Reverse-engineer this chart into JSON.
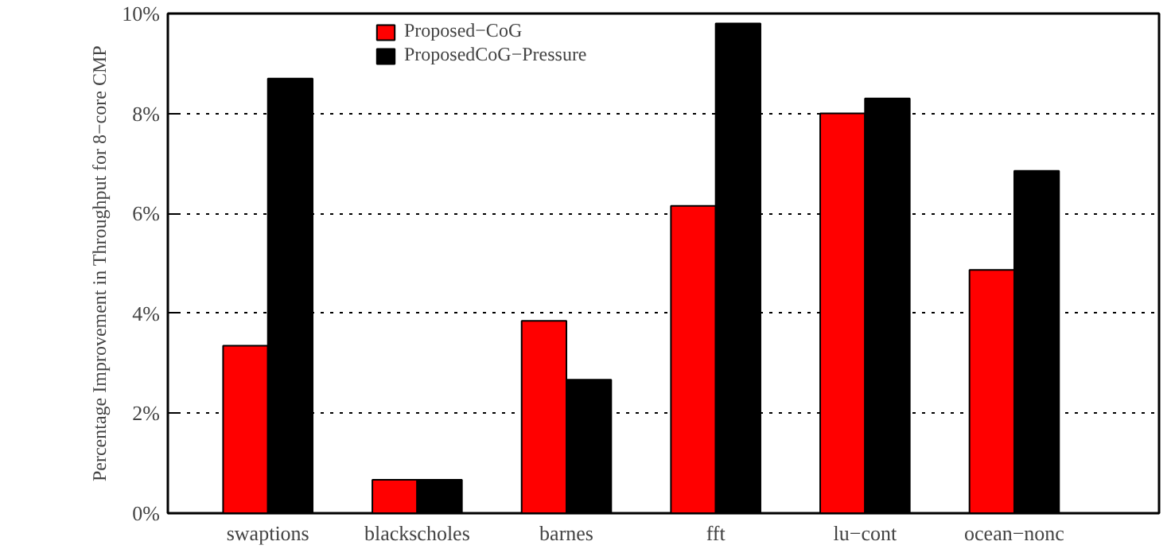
{
  "chart_data": {
    "type": "bar",
    "ylabel": "Percentage Improvement in Throughput for 8−core CMP",
    "categories": [
      "swaptions",
      "blackscholes",
      "barnes",
      "fft",
      "lu−cont",
      "ocean−nonc"
    ],
    "series": [
      {
        "name": "Proposed−CoG",
        "color": "#ff0000",
        "values": [
          3.35,
          0.67,
          3.85,
          6.15,
          8.0,
          4.87
        ]
      },
      {
        "name": "ProposedCoG−Pressure",
        "color": "#000000",
        "values": [
          8.7,
          0.67,
          2.67,
          9.8,
          8.3,
          6.85
        ]
      }
    ],
    "ylim": [
      0,
      10
    ],
    "yticks": [
      {
        "value": 0,
        "label": "0%"
      },
      {
        "value": 2,
        "label": "2%"
      },
      {
        "value": 4,
        "label": "4%"
      },
      {
        "value": 6,
        "label": "6%"
      },
      {
        "value": 8,
        "label": "8%"
      },
      {
        "value": 10,
        "label": "10%"
      }
    ],
    "grid": "y",
    "legend": "top"
  }
}
